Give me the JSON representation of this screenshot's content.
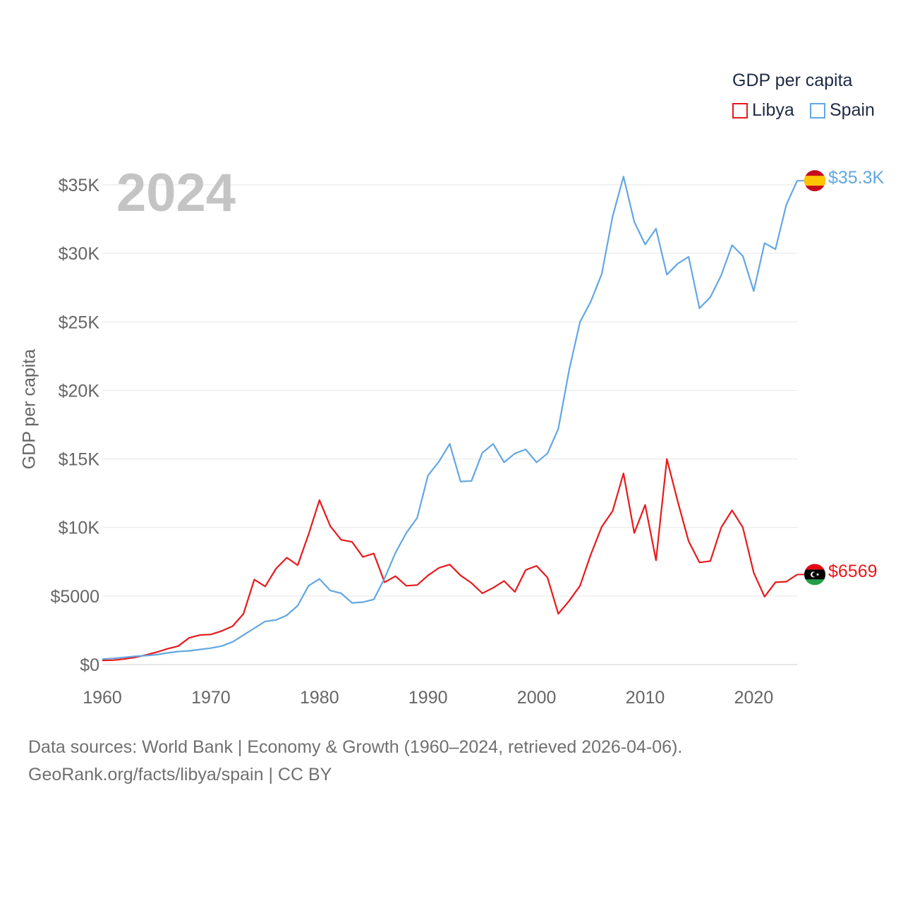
{
  "legend": {
    "title": "GDP per capita",
    "items": [
      {
        "name": "Libya",
        "color": "#e8191c"
      },
      {
        "name": "Spain",
        "color": "#62a7e2"
      }
    ]
  },
  "year_display": "2024",
  "end_labels": {
    "spain": "$35.3K",
    "libya": "$6569"
  },
  "footer": {
    "line1": "Data sources: World Bank | Economy & Growth (1960–2024, retrieved 2026-04-06).",
    "line2": "GeoRank.org/facts/libya/spain | CC BY"
  },
  "chart_data": {
    "type": "line",
    "title": "",
    "xlabel": "",
    "ylabel": "GDP per capita",
    "xlim": [
      1960,
      2024
    ],
    "ylim": [
      0,
      35000
    ],
    "x_ticks": [
      1960,
      1970,
      1980,
      1990,
      2000,
      2010,
      2020
    ],
    "y_ticks": [
      0,
      5000,
      10000,
      15000,
      20000,
      25000,
      30000,
      35000
    ],
    "y_tick_labels": [
      "$0",
      "$5000",
      "$10K",
      "$15K",
      "$20K",
      "$25K",
      "$30K",
      "$35K"
    ],
    "x": [
      1960,
      1961,
      1962,
      1963,
      1964,
      1965,
      1966,
      1967,
      1968,
      1969,
      1970,
      1971,
      1972,
      1973,
      1974,
      1975,
      1976,
      1977,
      1978,
      1979,
      1980,
      1981,
      1982,
      1983,
      1984,
      1985,
      1986,
      1987,
      1988,
      1989,
      1990,
      1991,
      1992,
      1993,
      1994,
      1995,
      1996,
      1997,
      1998,
      1999,
      2000,
      2001,
      2002,
      2003,
      2004,
      2005,
      2006,
      2007,
      2008,
      2009,
      2010,
      2011,
      2012,
      2013,
      2014,
      2015,
      2016,
      2017,
      2018,
      2019,
      2020,
      2021,
      2022,
      2023,
      2024
    ],
    "series": [
      {
        "name": "Libya",
        "color": "#e8191c",
        "values": [
          300,
          320,
          400,
          520,
          700,
          900,
          1150,
          1350,
          1950,
          2150,
          2200,
          2450,
          2800,
          3700,
          6200,
          5700,
          7000,
          7800,
          7250,
          9500,
          12000,
          10100,
          9100,
          8950,
          7850,
          8100,
          6000,
          6450,
          5750,
          5800,
          6500,
          7050,
          7300,
          6500,
          5950,
          5200,
          5600,
          6100,
          5300,
          6900,
          7200,
          6350,
          3700,
          4650,
          5750,
          8050,
          10050,
          11200,
          13950,
          9600,
          11650,
          7600,
          15000,
          11900,
          9000,
          7450,
          7550,
          10000,
          11250,
          10000,
          6700,
          4950,
          6000,
          6050,
          6569
        ]
      },
      {
        "name": "Spain",
        "color": "#62a7e2",
        "values": [
          400,
          450,
          520,
          600,
          650,
          720,
          850,
          950,
          1000,
          1100,
          1200,
          1350,
          1650,
          2150,
          2650,
          3150,
          3250,
          3600,
          4300,
          5750,
          6250,
          5400,
          5200,
          4500,
          4550,
          4750,
          6300,
          8150,
          9600,
          10700,
          13800,
          14800,
          16100,
          13350,
          13400,
          15450,
          16100,
          14750,
          15400,
          15700,
          14750,
          15400,
          17200,
          21500,
          25000,
          26500,
          28500,
          32700,
          35600,
          32300,
          30650,
          31800,
          28450,
          29250,
          29750,
          26000,
          26800,
          28400,
          30600,
          29800,
          27250,
          30750,
          30300,
          33550,
          35300
        ]
      }
    ]
  }
}
